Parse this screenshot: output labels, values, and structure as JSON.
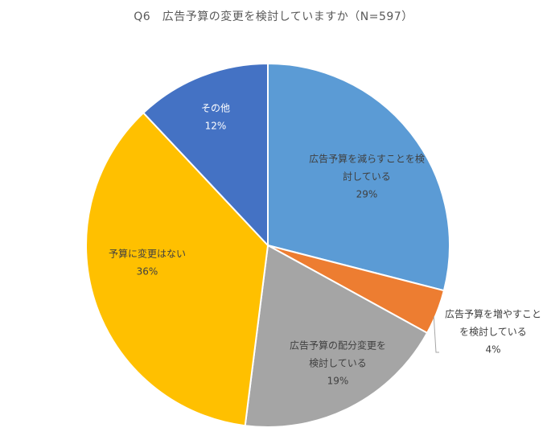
{
  "chart_data": {
    "type": "pie",
    "title": "Q6　広告予算の変更を検討していますか（N=597）",
    "categories": [
      "広告予算を減らすことを検討している",
      "広告予算を増やすことを検討している",
      "広告予算の配分変更を検討している",
      "予算に変更はない",
      "その他"
    ],
    "values": [
      29,
      4,
      19,
      36,
      12
    ],
    "value_suffix": "%",
    "colors": [
      "#5B9BD5",
      "#ED7D31",
      "#A5A5A5",
      "#FFC000",
      "#4472C4"
    ],
    "label_colors": [
      "#404040",
      "#404040",
      "#404040",
      "#404040",
      "#ffffff"
    ],
    "label_lines": [
      [
        "広告予算を減らすことを検",
        "討している"
      ],
      [
        "広告予算を増やすこと",
        "を検討している"
      ],
      [
        "広告予算の配分変更を",
        "検討している"
      ],
      [
        "予算に変更はない"
      ],
      [
        "その他"
      ]
    ],
    "start_angle": "12 o'clock",
    "direction": "clockwise",
    "legend": "none"
  }
}
